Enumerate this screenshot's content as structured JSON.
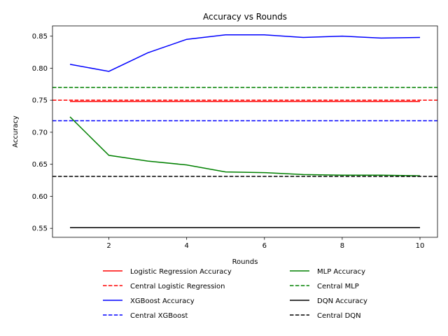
{
  "chart_data": {
    "type": "line",
    "title": "Accuracy vs Rounds",
    "xlabel": "Rounds",
    "ylabel": "Accuracy",
    "xlim": [
      0.55,
      10.45
    ],
    "ylim": [
      0.536,
      0.866
    ],
    "xticks": [
      2,
      4,
      6,
      8,
      10
    ],
    "yticks": [
      0.55,
      0.6,
      0.65,
      0.7,
      0.75,
      0.8,
      0.85
    ],
    "ytick_labels": [
      "0.55",
      "0.60",
      "0.65",
      "0.70",
      "0.75",
      "0.80",
      "0.85"
    ],
    "grid": false,
    "legend_position": "bottom-center",
    "x": [
      1,
      2,
      3,
      4,
      5,
      6,
      7,
      8,
      9,
      10
    ],
    "series": [
      {
        "name": "Logistic Regression Accuracy",
        "color": "#ff0000",
        "style": "solid",
        "values": [
          0.748,
          0.748,
          0.748,
          0.748,
          0.748,
          0.748,
          0.748,
          0.748,
          0.748,
          0.748
        ]
      },
      {
        "name": "Central Logistic Regression",
        "color": "#ff0000",
        "style": "dashed",
        "constant": 0.75
      },
      {
        "name": "XGBoost Accuracy",
        "color": "#0000ff",
        "style": "solid",
        "values": [
          0.806,
          0.795,
          0.824,
          0.845,
          0.852,
          0.852,
          0.848,
          0.85,
          0.847,
          0.848
        ]
      },
      {
        "name": "Central XGBoost",
        "color": "#0000ff",
        "style": "dashed",
        "constant": 0.718
      },
      {
        "name": "MLP Accuracy",
        "color": "#008000",
        "style": "solid",
        "values": [
          0.724,
          0.664,
          0.655,
          0.649,
          0.638,
          0.637,
          0.634,
          0.633,
          0.633,
          0.632
        ]
      },
      {
        "name": "Central MLP",
        "color": "#008000",
        "style": "dashed",
        "constant": 0.77
      },
      {
        "name": "DQN Accuracy",
        "color": "#000000",
        "style": "solid",
        "values": [
          0.551,
          0.551,
          0.551,
          0.551,
          0.551,
          0.551,
          0.551,
          0.551,
          0.551,
          0.551
        ]
      },
      {
        "name": "Central DQN",
        "color": "#000000",
        "style": "dashed",
        "constant": 0.631
      }
    ]
  }
}
